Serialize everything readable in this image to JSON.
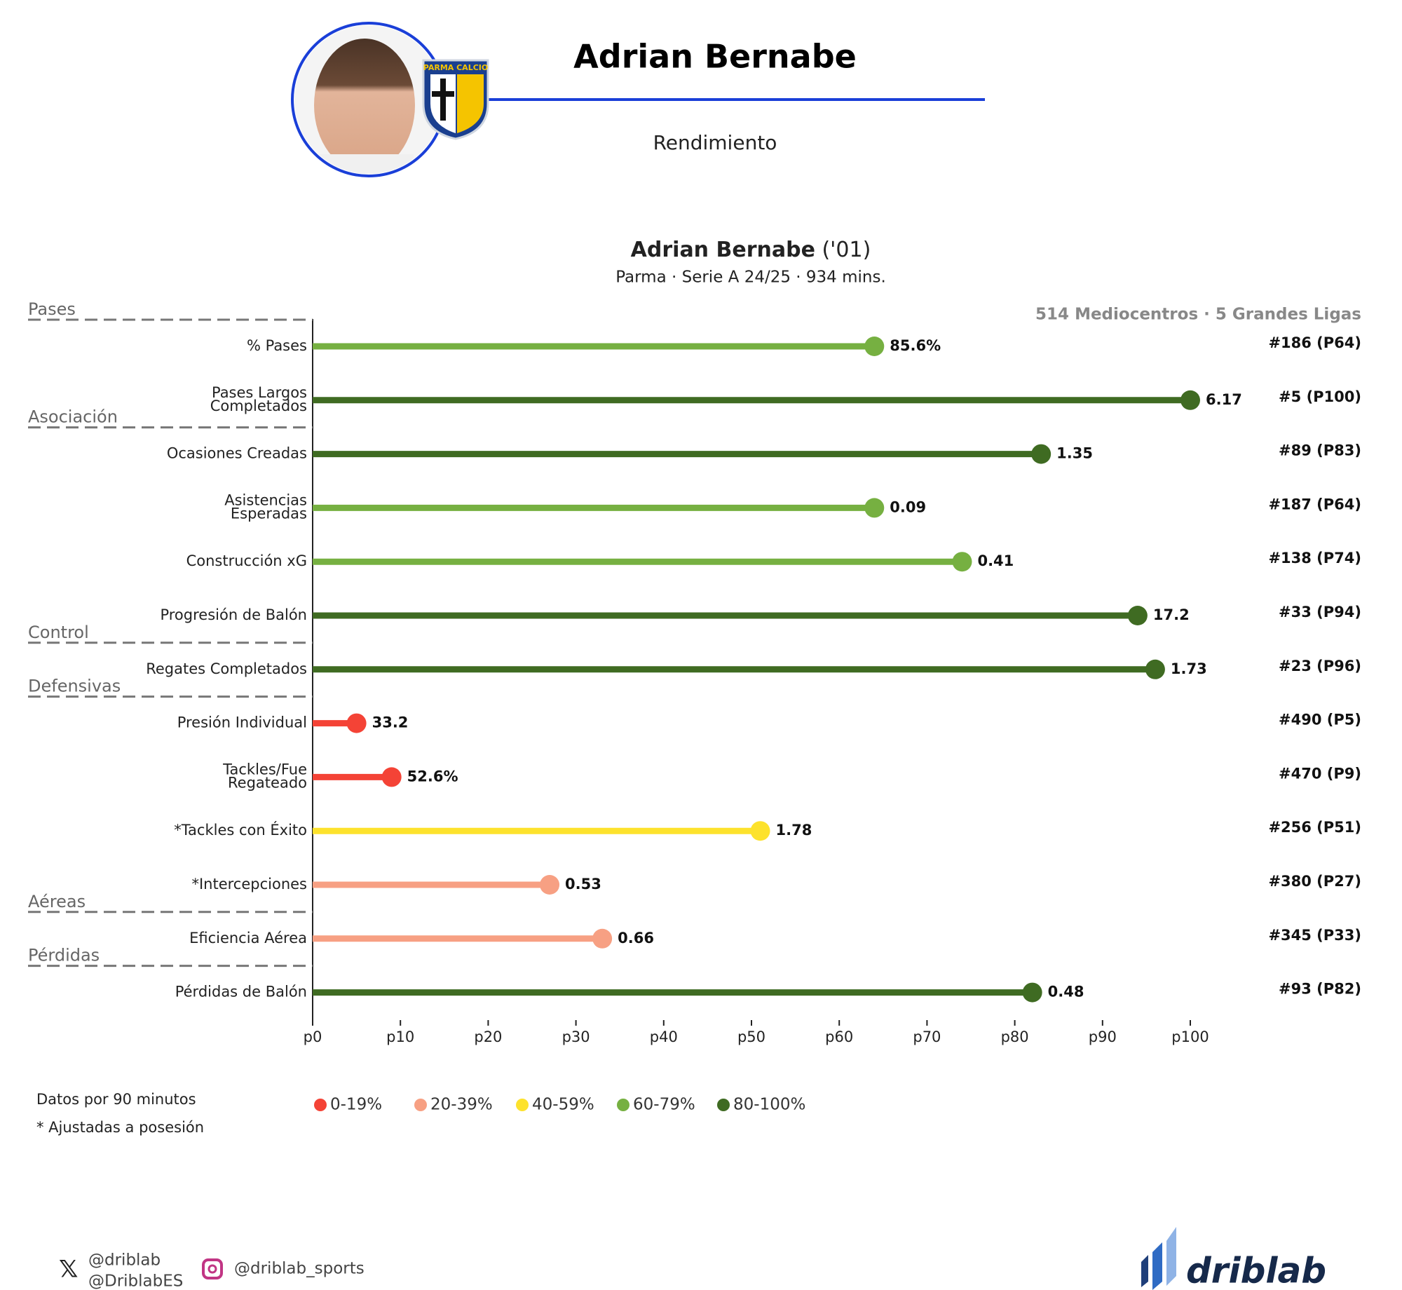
{
  "header": {
    "name": "Adrian Bernabe",
    "subtitle": "Rendimiento",
    "club": "PARMA CALCIO"
  },
  "chart_data": {
    "type": "lollipop",
    "title": "Adrian Bernabe",
    "title_suffix": "('01)",
    "subtitle": "Parma · Serie A 24/25 · 934 mins.",
    "comparison": "514 Mediocentros · 5 Grandes Ligas",
    "categories": [
      "% Pases",
      "Pases Largos Completados",
      "Ocasiones Creadas",
      "Asistencias Esperadas",
      "Construcción xG",
      "Progresión de Balón",
      "Regates Completados",
      "Presión Individual",
      "Tackles/Fue Regateado",
      "*Tackles con Éxito",
      "*Intercepciones",
      "Eficiencia Aérea",
      "Pérdidas de Balón"
    ],
    "values": [
      64,
      100,
      83,
      64,
      74,
      94,
      96,
      5,
      9,
      51,
      27,
      33,
      82
    ],
    "stat_labels": [
      "85.6%",
      "6.17",
      "1.35",
      "0.09",
      "0.41",
      "17.2",
      "1.73",
      "33.2",
      "52.6%",
      "1.78",
      "0.53",
      "0.66",
      "0.48"
    ],
    "rank_labels": [
      "#186 (P64)",
      "#5 (P100)",
      "#89 (P83)",
      "#187 (P64)",
      "#138 (P74)",
      "#33 (P94)",
      "#23 (P96)",
      "#490 (P5)",
      "#470 (P9)",
      "#256 (P51)",
      "#380 (P27)",
      "#345 (P33)",
      "#93 (P82)"
    ],
    "colors": [
      "#76b041",
      "#3f6b22",
      "#3f6b22",
      "#76b041",
      "#76b041",
      "#3f6b22",
      "#3f6b22",
      "#f44336",
      "#f44336",
      "#fde22c",
      "#f7a083",
      "#f7a083",
      "#3f6b22"
    ],
    "groups": [
      {
        "name": "Pases",
        "start": 0
      },
      {
        "name": "Asociación",
        "start": 2
      },
      {
        "name": "Control",
        "start": 6
      },
      {
        "name": "Defensivas",
        "start": 7
      },
      {
        "name": "Aéreas",
        "start": 11
      },
      {
        "name": "Pérdidas",
        "start": 12
      }
    ],
    "xlim": [
      0,
      100
    ],
    "xticks": [
      {
        "value": 0,
        "label": "p0"
      },
      {
        "value": 10,
        "label": "p10"
      },
      {
        "value": 20,
        "label": "p20"
      },
      {
        "value": 30,
        "label": "p30"
      },
      {
        "value": 40,
        "label": "p40"
      },
      {
        "value": 50,
        "label": "p50"
      },
      {
        "value": 60,
        "label": "p60"
      },
      {
        "value": 70,
        "label": "p70"
      },
      {
        "value": 80,
        "label": "p80"
      },
      {
        "value": 90,
        "label": "p90"
      },
      {
        "value": 100,
        "label": "p100"
      }
    ],
    "legend": [
      {
        "label": "0-19%",
        "color": "#f44336"
      },
      {
        "label": "20-39%",
        "color": "#f7a083"
      },
      {
        "label": "40-59%",
        "color": "#fde22c"
      },
      {
        "label": "60-79%",
        "color": "#76b041"
      },
      {
        "label": "80-100%",
        "color": "#3f6b22"
      }
    ],
    "notes": [
      "Datos por 90 minutos",
      "* Ajustadas a posesión"
    ]
  },
  "footer": {
    "twitter": [
      "@driblab",
      "@DriblabES"
    ],
    "instagram": "@driblab_sports",
    "brand": "driblab"
  }
}
